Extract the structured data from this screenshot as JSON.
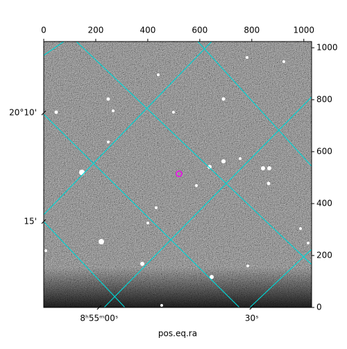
{
  "chart_data": {
    "type": "image",
    "xlabel": "pos.eq.ra",
    "xlim": [
      0,
      1030
    ],
    "ylim": [
      0,
      1024
    ],
    "xticks": [
      0,
      200,
      400,
      600,
      800,
      1000
    ],
    "yticks": [
      0,
      200,
      400,
      600,
      800,
      1000
    ],
    "ra_ticks": [
      {
        "value": 213,
        "label": "8ʰ55ᵐ00ˢ"
      },
      {
        "value": 800,
        "label": "30ˢ"
      }
    ],
    "dec_ticks": [
      {
        "value": 749,
        "label": "20°10'"
      },
      {
        "value": 331,
        "label": "15'"
      }
    ],
    "grid_color": "#00d4d4"
  }
}
